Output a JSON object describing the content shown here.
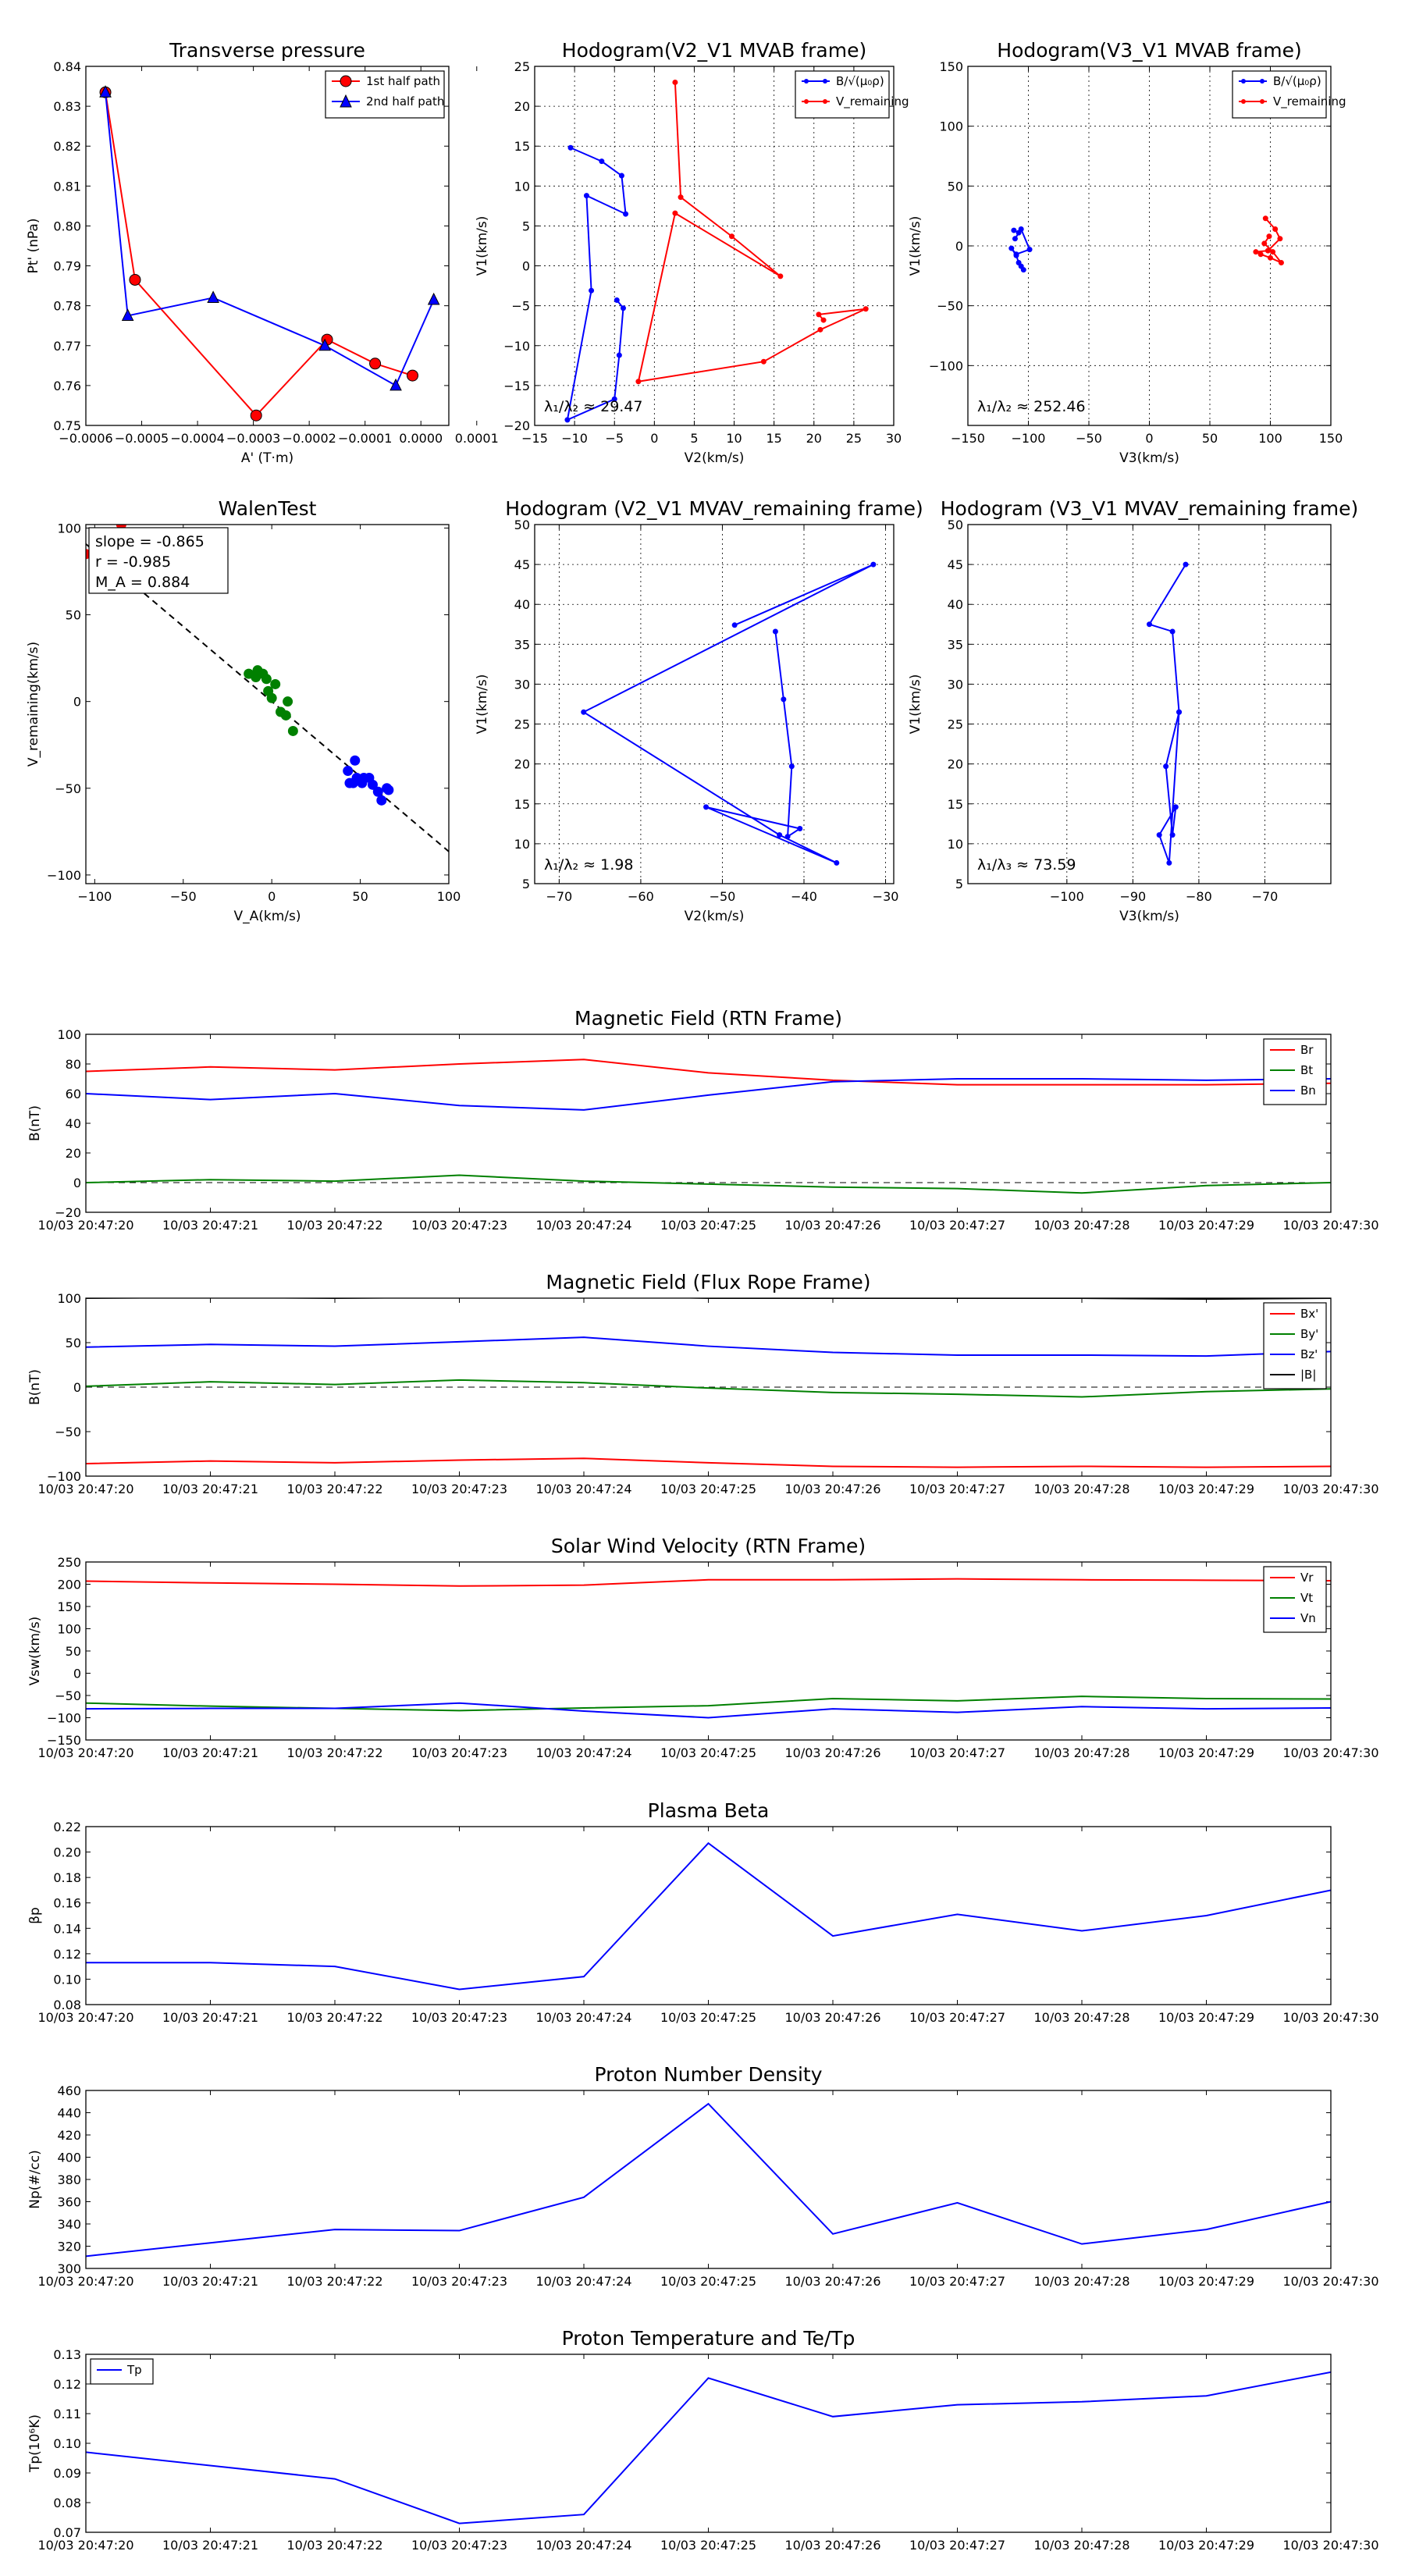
{
  "chart_data": [
    {
      "id": "transverse_pressure",
      "type": "scatter",
      "title": "Transverse pressure",
      "xlabel": "A' (T·m)",
      "ylabel": "Pt' (nPa)",
      "xlim": [
        -0.0006,
        5e-05
      ],
      "ylim": [
        0.75,
        0.84
      ],
      "xticks": [
        -0.0006,
        -0.0005,
        -0.0004,
        -0.0003,
        -0.0002,
        -0.0001,
        0.0,
        0.0001
      ],
      "xtick_labels": [
        "−0.0006",
        "−0.0005",
        "−0.0004",
        "−0.0003",
        "−0.0002",
        "−0.0001",
        "0.0000",
        "0.0001"
      ],
      "yticks": [
        0.75,
        0.76,
        0.77,
        0.78,
        0.79,
        0.8,
        0.81,
        0.82,
        0.83,
        0.84
      ],
      "ytick_labels": [
        "0.75",
        "0.76",
        "0.77",
        "0.78",
        "0.79",
        "0.80",
        "0.81",
        "0.82",
        "0.83",
        "0.84"
      ],
      "grid": false,
      "legend": "top-right",
      "series": [
        {
          "name": "1st half path",
          "color": "#ff0000",
          "marker": "circle",
          "x": [
            -0.000565,
            -0.000512,
            -0.000295,
            -0.000168,
            -8.2e-05,
            -1.5e-05
          ],
          "y": [
            0.8335,
            0.7865,
            0.7525,
            0.7715,
            0.7655,
            0.7625
          ]
        },
        {
          "name": "2nd half path",
          "color": "#0000ff",
          "marker": "triangle",
          "x": [
            -0.000565,
            -0.000525,
            -0.000372,
            -0.000172,
            -4.5e-05,
            2.3e-05
          ],
          "y": [
            0.8335,
            0.7775,
            0.782,
            0.77,
            0.76,
            0.7815
          ]
        }
      ]
    },
    {
      "id": "hodogram_v2v1_mvab",
      "type": "line",
      "title": "Hodogram(V2_V1 MVAB frame)",
      "xlabel": "V2(km/s)",
      "ylabel": "V1(km/s)",
      "xlim": [
        -15,
        30
      ],
      "ylim": [
        -20,
        25
      ],
      "xticks": [
        -15,
        -10,
        -5,
        0,
        5,
        10,
        15,
        20,
        25,
        30
      ],
      "xtick_labels": [
        "−15",
        "−10",
        "−5",
        "0",
        "5",
        "10",
        "15",
        "20",
        "25",
        "30"
      ],
      "yticks": [
        -20,
        -15,
        -10,
        -5,
        0,
        5,
        10,
        15,
        20,
        25
      ],
      "ytick_labels": [
        "−20",
        "−15",
        "−10",
        "−5",
        "0",
        "5",
        "10",
        "15",
        "20",
        "25"
      ],
      "grid": true,
      "legend": "top-right",
      "annotation": "λ₁/λ₂ ≈ 29.47",
      "series": [
        {
          "name": "B/√(μ₀ρ)",
          "color": "#0000ff",
          "x": [
            -10.5,
            -6.6,
            -4.1,
            -3.6,
            -8.5,
            -7.9,
            -10.9,
            -5.0,
            -4.4,
            -3.9,
            -4.7
          ],
          "y": [
            14.8,
            13.1,
            11.3,
            6.5,
            8.8,
            -3.1,
            -19.3,
            -16.7,
            -11.2,
            -5.3,
            -4.3
          ]
        },
        {
          "name": "V_remaining",
          "color": "#ff0000",
          "x": [
            2.6,
            3.3,
            9.7,
            15.8,
            2.6,
            -2.0,
            13.7,
            20.8,
            26.5,
            20.6,
            21.2
          ],
          "y": [
            23.0,
            8.6,
            3.7,
            -1.3,
            6.6,
            -14.5,
            -12.0,
            -8.0,
            -5.4,
            -6.1,
            -6.8
          ]
        }
      ]
    },
    {
      "id": "hodogram_v3v1_mvab",
      "type": "line",
      "title": "Hodogram(V3_V1 MVAB frame)",
      "xlabel": "V3(km/s)",
      "ylabel": "V1(km/s)",
      "xlim": [
        -150,
        150
      ],
      "ylim": [
        -150,
        150
      ],
      "xticks": [
        -150,
        -100,
        -50,
        0,
        50,
        100,
        150
      ],
      "xtick_labels": [
        "−150",
        "−100",
        "−50",
        "0",
        "50",
        "100",
        "150"
      ],
      "yticks": [
        -100,
        -50,
        0,
        50,
        100,
        150
      ],
      "ytick_labels": [
        "−100",
        "−50",
        "0",
        "50",
        "100",
        "150"
      ],
      "grid": true,
      "legend": "top-right",
      "annotation": "λ₁/λ₂ ≈ 252.46",
      "series": [
        {
          "name": "B/√(μ₀ρ)",
          "color": "#0000ff",
          "x": [
            -112,
            -108,
            -111,
            -106,
            -99,
            -110,
            -114,
            -110,
            -108,
            -106,
            -104
          ],
          "y": [
            13,
            11,
            6,
            14,
            -3,
            -7,
            -2,
            -8,
            -14,
            -17,
            -20
          ]
        },
        {
          "name": "V_remaining",
          "color": "#ff0000",
          "x": [
            96,
            104,
            108,
            98,
            88,
            92,
            100,
            109,
            102,
            95,
            99
          ],
          "y": [
            23,
            14,
            6,
            -4,
            -5,
            -7,
            -10,
            -14,
            -5,
            2,
            8
          ]
        }
      ]
    },
    {
      "id": "walen_test",
      "type": "scatter",
      "title": "WalenTest",
      "xlabel": "V_A(km/s)",
      "ylabel": "V_remaining(km/s)",
      "xlim": [
        -105,
        100
      ],
      "ylim": [
        -105,
        102
      ],
      "xticks": [
        -100,
        -50,
        0,
        50,
        100
      ],
      "xtick_labels": [
        "−100",
        "−50",
        "0",
        "50",
        "100"
      ],
      "yticks": [
        -100,
        -50,
        0,
        50,
        100
      ],
      "ytick_labels": [
        "−100",
        "−50",
        "0",
        "50",
        "100"
      ],
      "grid": false,
      "annotations": [
        "slope = -0.865",
        "r = -0.985",
        "M_A = 0.884"
      ],
      "fit_line": {
        "slope": -0.865,
        "intercept": 0
      },
      "series": [
        {
          "name": "red",
          "color": "#ff0000",
          "x": [
            -105,
            -110,
            -85
          ],
          "y": [
            85,
            88,
            102
          ]
        },
        {
          "name": "green",
          "color": "#008000",
          "x": [
            -8,
            -13,
            -9,
            -3,
            -5,
            2,
            5,
            -2,
            0,
            8,
            9,
            12
          ],
          "y": [
            18,
            16,
            14,
            13,
            16,
            10,
            -6,
            6,
            2,
            -8,
            0,
            -17
          ]
        },
        {
          "name": "blue",
          "color": "#0000ff",
          "x": [
            47,
            52,
            43,
            48,
            46,
            57,
            60,
            55,
            65,
            62,
            44,
            51,
            66
          ],
          "y": [
            -34,
            -44,
            -40,
            -44,
            -47,
            -48,
            -52,
            -44,
            -50,
            -57,
            -47,
            -47,
            -51
          ]
        }
      ]
    },
    {
      "id": "hodogram_v2v1_mvav",
      "type": "line",
      "title": "Hodogram (V2_V1 MVAV_remaining frame)",
      "xlabel": "V2(km/s)",
      "ylabel": "V1(km/s)",
      "xlim": [
        -73,
        -29
      ],
      "ylim": [
        5,
        50
      ],
      "xticks": [
        -70,
        -60,
        -50,
        -40,
        -30
      ],
      "xtick_labels": [
        "−70",
        "−60",
        "−50",
        "−40",
        "−30"
      ],
      "yticks": [
        5,
        10,
        15,
        20,
        25,
        30,
        35,
        40,
        45,
        50
      ],
      "ytick_labels": [
        "5",
        "10",
        "15",
        "20",
        "25",
        "30",
        "35",
        "40",
        "45",
        "50"
      ],
      "grid": true,
      "annotation": "λ₁/λ₂ ≈ 1.98",
      "series": [
        {
          "name": "V",
          "color": "#0000ff",
          "x": [
            -48.5,
            -31.5,
            -67.0,
            -43.0,
            -36.0,
            -52.0,
            -40.5,
            -42.0,
            -41.5,
            -42.5,
            -43.5
          ],
          "y": [
            37.4,
            45.0,
            26.5,
            11.1,
            7.6,
            14.6,
            11.9,
            10.9,
            19.7,
            28.1,
            36.6
          ]
        }
      ]
    },
    {
      "id": "hodogram_v3v1_mvav",
      "type": "line",
      "title": "Hodogram (V3_V1 MVAV_remaining frame)",
      "xlabel": "V3(km/s)",
      "ylabel": "V1(km/s)",
      "xlim": [
        -115,
        -60
      ],
      "ylim": [
        5,
        50
      ],
      "xticks": [
        -100,
        -90,
        -80,
        -70
      ],
      "xtick_labels": [
        "−100",
        "−90",
        "−80",
        "−70"
      ],
      "yticks": [
        5,
        10,
        15,
        20,
        25,
        30,
        35,
        40,
        45,
        50
      ],
      "ytick_labels": [
        "5",
        "10",
        "15",
        "20",
        "25",
        "30",
        "35",
        "40",
        "45",
        "50"
      ],
      "grid": true,
      "annotation": "λ₁/λ₃ ≈ 73.59",
      "series": [
        {
          "name": "V",
          "color": "#0000ff",
          "x": [
            -82.0,
            -87.5,
            -84.0,
            -83.0,
            -85.0,
            -84.0,
            -83.5,
            -86.0,
            -84.5,
            -83.0
          ],
          "y": [
            45.0,
            37.5,
            36.6,
            26.5,
            19.7,
            11.1,
            14.6,
            11.1,
            7.6,
            26.5
          ]
        }
      ]
    },
    {
      "id": "mag_rtn",
      "type": "line",
      "title": "Magnetic Field (RTN Frame)",
      "ylabel": "B(nT)",
      "ylim": [
        -20,
        100
      ],
      "yticks": [
        -20,
        0,
        20,
        40,
        60,
        80,
        100
      ],
      "ytick_labels": [
        "−20",
        "0",
        "20",
        "40",
        "60",
        "80",
        "100"
      ],
      "legend": "top-right",
      "dashed_zero": true,
      "series": [
        {
          "name": "Br",
          "color": "#ff0000",
          "values": [
            75,
            78,
            76,
            80,
            83,
            74,
            69,
            66,
            66,
            66,
            67
          ]
        },
        {
          "name": "Bt",
          "color": "#008000",
          "values": [
            0,
            2,
            1,
            5,
            1,
            -1,
            -3,
            -4,
            -7,
            -2,
            0
          ]
        },
        {
          "name": "Bn",
          "color": "#0000ff",
          "values": [
            60,
            56,
            60,
            52,
            49,
            59,
            68,
            70,
            70,
            69,
            70
          ]
        }
      ]
    },
    {
      "id": "mag_flux_rope",
      "type": "line",
      "title": "Magnetic Field (Flux Rope Frame)",
      "ylabel": "B(nT)",
      "ylim": [
        -100,
        100
      ],
      "yticks": [
        -100,
        -50,
        0,
        50,
        100
      ],
      "ytick_labels": [
        "−100",
        "−50",
        "0",
        "50",
        "100"
      ],
      "legend": "top-right",
      "dashed_zero": true,
      "series": [
        {
          "name": "Bx'",
          "color": "#ff0000",
          "values": [
            -86,
            -83,
            -85,
            -82,
            -80,
            -85,
            -89,
            -90,
            -89,
            -90,
            -89
          ]
        },
        {
          "name": "By'",
          "color": "#008000",
          "values": [
            1,
            6,
            3,
            8,
            5,
            -1,
            -6,
            -8,
            -11,
            -5,
            -2
          ]
        },
        {
          "name": "Bz'",
          "color": "#0000ff",
          "values": [
            45,
            48,
            46,
            51,
            56,
            46,
            39,
            36,
            36,
            35,
            40
          ]
        },
        {
          "name": "|B|",
          "color": "#000000",
          "values": [
            100,
            101,
            100,
            101,
            103,
            100,
            100,
            100,
            100,
            99,
            100
          ]
        }
      ]
    },
    {
      "id": "sw_velocity",
      "type": "line",
      "title": "Solar Wind Velocity (RTN Frame)",
      "ylabel": "Vsw(km/s)",
      "ylim": [
        -150,
        250
      ],
      "yticks": [
        -150,
        -100,
        -50,
        0,
        50,
        100,
        150,
        200,
        250
      ],
      "ytick_labels": [
        "−150",
        "−100",
        "−50",
        "0",
        "50",
        "100",
        "150",
        "200",
        "250"
      ],
      "legend": "top-right",
      "series": [
        {
          "name": "Vr",
          "color": "#ff0000",
          "values": [
            207,
            203,
            200,
            196,
            198,
            210,
            210,
            212,
            210,
            209,
            208
          ]
        },
        {
          "name": "Vt",
          "color": "#008000",
          "values": [
            -67,
            -74,
            -79,
            -84,
            -78,
            -73,
            -57,
            -62,
            -52,
            -57,
            -58
          ]
        },
        {
          "name": "Vn",
          "color": "#0000ff",
          "values": [
            -80,
            -79,
            -79,
            -67,
            -85,
            -100,
            -80,
            -88,
            -75,
            -80,
            -78
          ]
        }
      ]
    },
    {
      "id": "plasma_beta",
      "type": "line",
      "title": "Plasma Beta",
      "ylabel": "βp",
      "ylim": [
        0.08,
        0.22
      ],
      "yticks": [
        0.08,
        0.1,
        0.12,
        0.14,
        0.16,
        0.18,
        0.2,
        0.22
      ],
      "ytick_labels": [
        "0.08",
        "0.10",
        "0.12",
        "0.14",
        "0.16",
        "0.18",
        "0.20",
        "0.22"
      ],
      "series": [
        {
          "name": "beta",
          "color": "#0000ff",
          "values": [
            0.113,
            0.113,
            0.11,
            0.092,
            0.102,
            0.207,
            0.134,
            0.151,
            0.138,
            0.15,
            0.17
          ]
        }
      ]
    },
    {
      "id": "proton_density",
      "type": "line",
      "title": "Proton Number Density",
      "ylabel": "Np(#/cc)",
      "ylim": [
        300,
        460
      ],
      "yticks": [
        300,
        320,
        340,
        360,
        380,
        400,
        420,
        440,
        460
      ],
      "ytick_labels": [
        "300",
        "320",
        "340",
        "360",
        "380",
        "400",
        "420",
        "440",
        "460"
      ],
      "series": [
        {
          "name": "Np",
          "color": "#0000ff",
          "values": [
            311,
            323,
            335,
            334,
            364,
            448,
            331,
            359,
            322,
            335,
            360
          ]
        }
      ]
    },
    {
      "id": "proton_temperature",
      "type": "line",
      "title": "Proton Temperature and Te/Tp",
      "ylabel": "Tp(10⁶K)",
      "ylim": [
        0.07,
        0.13
      ],
      "yticks": [
        0.07,
        0.08,
        0.09,
        0.1,
        0.11,
        0.12,
        0.13
      ],
      "ytick_labels": [
        "0.07",
        "0.08",
        "0.09",
        "0.10",
        "0.11",
        "0.12",
        "0.13"
      ],
      "legend": "top-left",
      "series": [
        {
          "name": "Tp",
          "color": "#0000ff",
          "values": [
            0.097,
            null,
            0.088,
            0.073,
            0.076,
            0.122,
            0.109,
            0.113,
            0.114,
            0.116,
            0.124
          ]
        }
      ]
    }
  ],
  "time_ticks": [
    "10/03 20:47:20",
    "10/03 20:47:21",
    "10/03 20:47:22",
    "10/03 20:47:23",
    "10/03 20:47:24",
    "10/03 20:47:25",
    "10/03 20:47:26",
    "10/03 20:47:27",
    "10/03 20:47:28",
    "10/03 20:47:29",
    "10/03 20:47:30"
  ]
}
